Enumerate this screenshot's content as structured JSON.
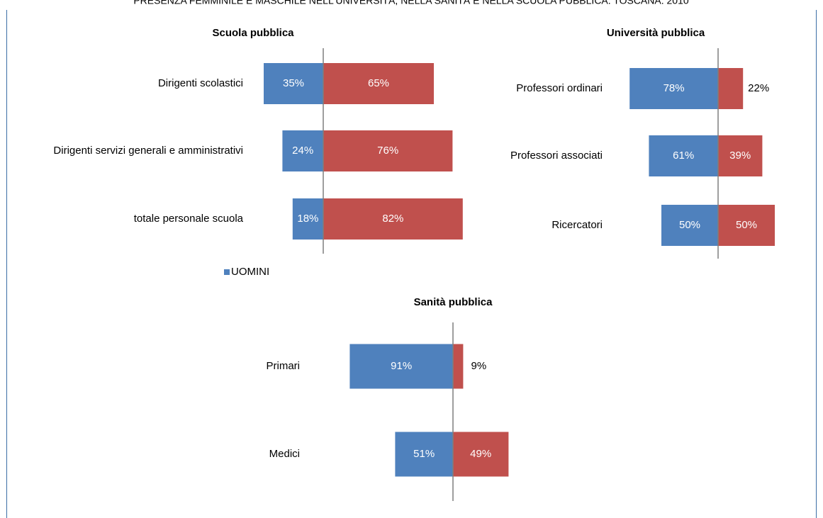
{
  "title": "PRESENZA FEMMINILE E MASCHILE NELL'UNIVERSITÀ, NELLA SANITÀ E NELLA SCUOLA PUBBLICA. TOSCANA. 2010",
  "chart_data": [
    {
      "type": "bar",
      "title": "Scuola pubblica",
      "categories": [
        "Dirigenti scolastici",
        "Dirigenti servizi generali e amministrativi",
        "totale personale scuola"
      ],
      "series": [
        {
          "name": "UOMINI",
          "color": "#4f81bd",
          "values": [
            35,
            24,
            18
          ],
          "value_labels": [
            "35%",
            "24%",
            "18%"
          ]
        },
        {
          "color": "#c0504d",
          "values": [
            65,
            76,
            82
          ],
          "value_labels": [
            "65%",
            "76%",
            "82%"
          ]
        }
      ],
      "legend": "bottom-left"
    },
    {
      "type": "bar",
      "title": "Università pubblica",
      "categories": [
        "Professori ordinari",
        "Professori associati",
        "Ricercatori"
      ],
      "series": [
        {
          "color": "#4f81bd",
          "values": [
            78,
            61,
            50
          ],
          "value_labels": [
            "78%",
            "61%",
            "50%"
          ]
        },
        {
          "color": "#c0504d",
          "values": [
            22,
            39,
            50
          ],
          "value_labels": [
            "22%",
            "39%",
            "50%"
          ]
        }
      ]
    },
    {
      "type": "bar",
      "title": "Sanità pubblica",
      "categories": [
        "Primari",
        "Medici"
      ],
      "series": [
        {
          "color": "#4f81bd",
          "values": [
            91,
            51
          ],
          "value_labels": [
            "91%",
            "51%"
          ]
        },
        {
          "color": "#c0504d",
          "values": [
            9,
            49
          ],
          "value_labels": [
            "9%",
            "49%"
          ]
        }
      ]
    }
  ]
}
